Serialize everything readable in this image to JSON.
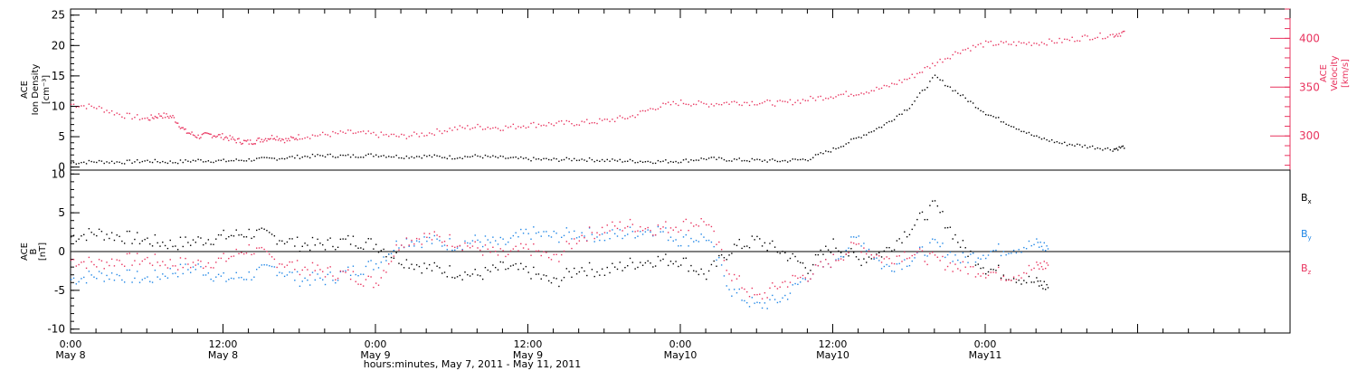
{
  "colors": {
    "black": "#000000",
    "pink": "#e8335e",
    "blue": "#1f86e6"
  },
  "chart_data": [
    {
      "type": "scatter",
      "panel": "top",
      "ylabel_left": [
        "ACE",
        "Ion Density",
        "[cm⁻³]"
      ],
      "ylabel_right": [
        "ACE",
        "Velocity",
        "[km/s]"
      ],
      "ylim_left": [
        -0.5,
        26
      ],
      "ylim_right": [
        265,
        430
      ],
      "yticks_left": [
        "0",
        "5",
        "10",
        "15",
        "20",
        "25"
      ],
      "yticks_right": [
        "300",
        "350",
        "400"
      ],
      "grid": false,
      "series": [
        {
          "axis": "left",
          "color": "#000000",
          "points": [
            [
              0,
              0.8
            ],
            [
              2,
              1.0
            ],
            [
              4,
              0.9
            ],
            [
              6,
              1.1
            ],
            [
              8,
              0.9
            ],
            [
              10,
              1.2
            ],
            [
              12,
              1.1
            ],
            [
              14,
              1.3
            ],
            [
              16,
              1.5
            ],
            [
              18,
              1.8
            ],
            [
              20,
              2.0
            ],
            [
              22,
              1.9
            ],
            [
              24,
              2.1
            ],
            [
              26,
              1.8
            ],
            [
              28,
              1.9
            ],
            [
              30,
              1.7
            ],
            [
              32,
              1.9
            ],
            [
              34,
              1.6
            ],
            [
              36,
              1.4
            ],
            [
              38,
              1.3
            ],
            [
              40,
              1.4
            ],
            [
              42,
              1.2
            ],
            [
              44,
              1.1
            ],
            [
              46,
              1.0
            ],
            [
              48,
              1.1
            ],
            [
              50,
              1.5
            ],
            [
              52,
              1.3
            ],
            [
              54,
              1.2
            ],
            [
              56,
              1.1
            ],
            [
              58,
              1.4
            ],
            [
              60,
              3.0
            ],
            [
              62,
              5.0
            ],
            [
              64,
              7.0
            ],
            [
              66,
              10.0
            ],
            [
              68,
              15.0
            ],
            [
              70,
              12.0
            ],
            [
              72,
              9.0
            ],
            [
              74,
              7.0
            ],
            [
              76,
              5.0
            ],
            [
              78,
              4.0
            ],
            [
              80,
              3.5
            ],
            [
              82,
              3.0
            ],
            [
              83,
              3.5
            ]
          ]
        },
        {
          "axis": "right",
          "color": "#e8335e",
          "points": [
            [
              0,
              333
            ],
            [
              2,
              330
            ],
            [
              4,
              322
            ],
            [
              6,
              318
            ],
            [
              7,
              322
            ],
            [
              8,
              320
            ],
            [
              9,
              305
            ],
            [
              10,
              300
            ],
            [
              11,
              302
            ],
            [
              12,
              300
            ],
            [
              13,
              296
            ],
            [
              14,
              294
            ],
            [
              15,
              297
            ],
            [
              16,
              300
            ],
            [
              17,
              296
            ],
            [
              18,
              300
            ],
            [
              20,
              302
            ],
            [
              22,
              304
            ],
            [
              24,
              302
            ],
            [
              26,
              300
            ],
            [
              28,
              303
            ],
            [
              30,
              308
            ],
            [
              32,
              310
            ],
            [
              34,
              309
            ],
            [
              36,
              312
            ],
            [
              38,
              313
            ],
            [
              40,
              314
            ],
            [
              42,
              316
            ],
            [
              44,
              320
            ],
            [
              46,
              330
            ],
            [
              48,
              335
            ],
            [
              50,
              333
            ],
            [
              52,
              335
            ],
            [
              54,
              335
            ],
            [
              56,
              334
            ],
            [
              58,
              338
            ],
            [
              60,
              342
            ],
            [
              62,
              345
            ],
            [
              64,
              350
            ],
            [
              66,
              360
            ],
            [
              68,
              375
            ],
            [
              70,
              388
            ],
            [
              72,
              395
            ],
            [
              74,
              395
            ],
            [
              76,
              396
            ],
            [
              78,
              398
            ],
            [
              80,
              402
            ],
            [
              82,
              404
            ],
            [
              83,
              407
            ]
          ]
        }
      ]
    },
    {
      "type": "scatter",
      "panel": "bottom",
      "ylabel": [
        "ACE",
        "B",
        "[nT]"
      ],
      "ylim": [
        -10.5,
        10.5
      ],
      "yticks": [
        "-10",
        "-5",
        "0",
        "5",
        "10"
      ],
      "zero_line": true,
      "legend_position": "right",
      "x_axis_label": "hours:minutes,  May  7, 2011 - May 11, 2011",
      "x_tick_labels": [
        {
          "x": 0,
          "time": "0:00",
          "day": "May 8"
        },
        {
          "x": 12,
          "time": "12:00",
          "day": "May 8"
        },
        {
          "x": 24,
          "time": "0:00",
          "day": "May 9"
        },
        {
          "x": 36,
          "time": "12:00",
          "day": "May 9"
        },
        {
          "x": 48,
          "time": "0:00",
          "day": "May10"
        },
        {
          "x": 60,
          "time": "12:00",
          "day": "May10"
        },
        {
          "x": 72,
          "time": "0:00",
          "day": "May11"
        }
      ],
      "xlim": [
        0,
        96
      ],
      "series": [
        {
          "name": "B",
          "sub": "x",
          "color": "#000000",
          "points": [
            [
              0,
              2.0
            ],
            [
              2,
              2.5
            ],
            [
              4,
              2.0
            ],
            [
              6,
              1.5
            ],
            [
              8,
              1.0
            ],
            [
              10,
              1.5
            ],
            [
              12,
              2.0
            ],
            [
              14,
              2.5
            ],
            [
              16,
              2.0
            ],
            [
              18,
              1.0
            ],
            [
              20,
              1.0
            ],
            [
              22,
              1.5
            ],
            [
              24,
              1.0
            ],
            [
              26,
              -1.0
            ],
            [
              28,
              -2.0
            ],
            [
              30,
              -2.5
            ],
            [
              32,
              -3.0
            ],
            [
              34,
              -2.0
            ],
            [
              36,
              -2.5
            ],
            [
              38,
              -4.0
            ],
            [
              40,
              -2.0
            ],
            [
              42,
              -2.5
            ],
            [
              44,
              -1.5
            ],
            [
              46,
              -1.0
            ],
            [
              48,
              -1.0
            ],
            [
              50,
              -3.0
            ],
            [
              52,
              0.5
            ],
            [
              54,
              1.5
            ],
            [
              56,
              0.0
            ],
            [
              58,
              -2.0
            ],
            [
              60,
              1.0
            ],
            [
              62,
              -1.0
            ],
            [
              64,
              0.0
            ],
            [
              66,
              3.0
            ],
            [
              68,
              6.0
            ],
            [
              70,
              1.0
            ],
            [
              72,
              -2.0
            ],
            [
              74,
              -3.0
            ],
            [
              76,
              -4.0
            ],
            [
              77,
              -4.5
            ]
          ]
        },
        {
          "name": "B",
          "sub": "y",
          "color": "#1f86e6",
          "points": [
            [
              0,
              -3.5
            ],
            [
              2,
              -3.0
            ],
            [
              4,
              -3.0
            ],
            [
              6,
              -3.5
            ],
            [
              8,
              -2.5
            ],
            [
              10,
              -2.0
            ],
            [
              12,
              -3.5
            ],
            [
              14,
              -3.0
            ],
            [
              16,
              -2.0
            ],
            [
              18,
              -3.5
            ],
            [
              20,
              -3.5
            ],
            [
              22,
              -2.5
            ],
            [
              24,
              -1.5
            ],
            [
              26,
              1.5
            ],
            [
              28,
              1.5
            ],
            [
              30,
              1.0
            ],
            [
              32,
              1.5
            ],
            [
              34,
              1.0
            ],
            [
              36,
              2.5
            ],
            [
              38,
              2.0
            ],
            [
              40,
              2.5
            ],
            [
              42,
              2.0
            ],
            [
              44,
              2.5
            ],
            [
              46,
              3.0
            ],
            [
              48,
              1.5
            ],
            [
              50,
              2.0
            ],
            [
              52,
              -5.0
            ],
            [
              54,
              -7.0
            ],
            [
              56,
              -6.0
            ],
            [
              58,
              -3.0
            ],
            [
              60,
              -1.0
            ],
            [
              62,
              2.0
            ],
            [
              64,
              -2.0
            ],
            [
              66,
              -1.0
            ],
            [
              68,
              1.0
            ],
            [
              70,
              -1.0
            ],
            [
              72,
              0.0
            ],
            [
              74,
              0.5
            ],
            [
              76,
              1.0
            ],
            [
              77,
              0.5
            ]
          ]
        },
        {
          "name": "B",
          "sub": "z",
          "color": "#e8335e",
          "points": [
            [
              0,
              -1.0
            ],
            [
              2,
              -1.5
            ],
            [
              4,
              -1.0
            ],
            [
              6,
              -1.0
            ],
            [
              8,
              -1.5
            ],
            [
              10,
              -1.5
            ],
            [
              12,
              -1.0
            ],
            [
              14,
              0.5
            ],
            [
              16,
              -1.0
            ],
            [
              18,
              -2.0
            ],
            [
              20,
              -2.5
            ],
            [
              22,
              -3.0
            ],
            [
              24,
              -4.0
            ],
            [
              26,
              1.5
            ],
            [
              28,
              2.0
            ],
            [
              30,
              1.5
            ],
            [
              32,
              0.5
            ],
            [
              34,
              -0.5
            ],
            [
              36,
              0.5
            ],
            [
              38,
              -1.0
            ],
            [
              40,
              2.0
            ],
            [
              42,
              3.0
            ],
            [
              44,
              3.5
            ],
            [
              46,
              3.0
            ],
            [
              48,
              3.5
            ],
            [
              50,
              4.0
            ],
            [
              52,
              -3.0
            ],
            [
              54,
              -6.0
            ],
            [
              56,
              -4.0
            ],
            [
              58,
              -3.0
            ],
            [
              60,
              -1.0
            ],
            [
              62,
              1.0
            ],
            [
              64,
              -1.0
            ],
            [
              66,
              0.0
            ],
            [
              68,
              -1.0
            ],
            [
              70,
              -2.0
            ],
            [
              72,
              -2.5
            ],
            [
              74,
              -3.0
            ],
            [
              76,
              -2.0
            ],
            [
              77,
              -1.5
            ]
          ]
        }
      ]
    }
  ]
}
